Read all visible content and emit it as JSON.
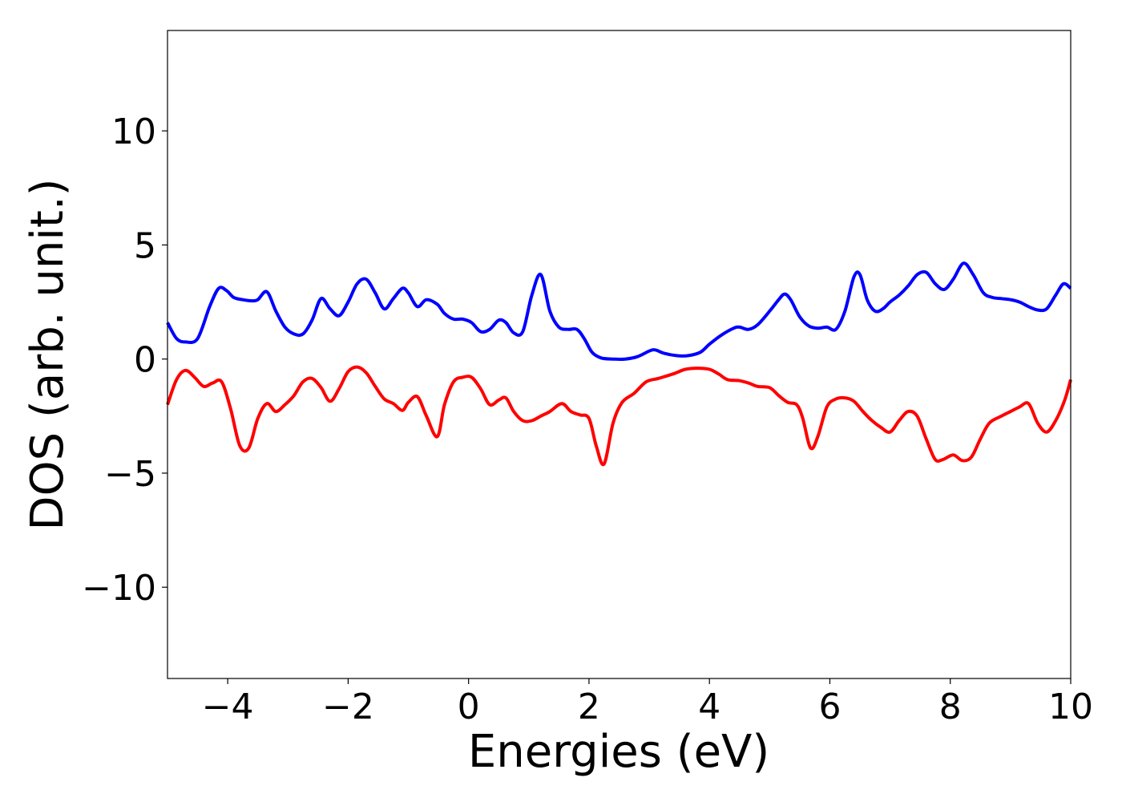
{
  "chart_data": {
    "type": "line",
    "title": "",
    "xlabel": "Energies (eV)",
    "ylabel": "DOS (arb. unit.)",
    "xlim": [
      -5,
      10
    ],
    "ylim": [
      -14,
      14.4
    ],
    "xticks": [
      -4,
      -2,
      0,
      2,
      4,
      6,
      8,
      10
    ],
    "xtick_labels": [
      "−4",
      "−2",
      "0",
      "2",
      "4",
      "6",
      "8",
      "10"
    ],
    "yticks": [
      -10,
      -5,
      0,
      5,
      10
    ],
    "ytick_labels": [
      "−10",
      "−5",
      "0",
      "5",
      "10"
    ],
    "grid": false,
    "legend": "none",
    "series": [
      {
        "color": "#0000ff",
        "x": [
          -5.0,
          -4.85,
          -4.7,
          -4.5,
          -4.3,
          -4.15,
          -4.02,
          -3.9,
          -3.75,
          -3.6,
          -3.5,
          -3.35,
          -3.2,
          -3.05,
          -2.9,
          -2.75,
          -2.6,
          -2.45,
          -2.3,
          -2.15,
          -2.0,
          -1.85,
          -1.7,
          -1.55,
          -1.4,
          -1.25,
          -1.1,
          -1.0,
          -0.85,
          -0.7,
          -0.52,
          -0.4,
          -0.25,
          -0.1,
          0.05,
          0.2,
          0.35,
          0.5,
          0.62,
          0.75,
          0.9,
          1.05,
          1.2,
          1.35,
          1.5,
          1.65,
          1.8,
          1.92,
          2.05,
          2.2,
          2.4,
          2.6,
          2.8,
          3.0,
          3.1,
          3.25,
          3.45,
          3.65,
          3.85,
          4.0,
          4.2,
          4.4,
          4.5,
          4.65,
          4.8,
          5.0,
          5.15,
          5.25,
          5.35,
          5.5,
          5.65,
          5.8,
          5.95,
          6.1,
          6.25,
          6.4,
          6.5,
          6.62,
          6.75,
          6.88,
          7.0,
          7.15,
          7.3,
          7.45,
          7.6,
          7.75,
          7.9,
          8.05,
          8.22,
          8.38,
          8.55,
          8.7,
          8.85,
          9.0,
          9.15,
          9.3,
          9.45,
          9.6,
          9.75,
          9.88,
          10.0
        ],
        "y": [
          1.6,
          0.9,
          0.75,
          0.9,
          2.3,
          3.1,
          3.0,
          2.7,
          2.6,
          2.55,
          2.6,
          2.95,
          2.1,
          1.4,
          1.1,
          1.1,
          1.7,
          2.65,
          2.2,
          1.9,
          2.5,
          3.3,
          3.5,
          2.9,
          2.2,
          2.65,
          3.1,
          2.9,
          2.3,
          2.6,
          2.4,
          2.0,
          1.75,
          1.75,
          1.6,
          1.2,
          1.3,
          1.7,
          1.6,
          1.15,
          1.2,
          2.8,
          3.7,
          2.1,
          1.4,
          1.3,
          1.3,
          0.9,
          0.3,
          0.05,
          0.0,
          0.0,
          0.1,
          0.35,
          0.4,
          0.25,
          0.15,
          0.15,
          0.3,
          0.65,
          1.05,
          1.35,
          1.4,
          1.3,
          1.5,
          2.1,
          2.6,
          2.85,
          2.6,
          1.85,
          1.45,
          1.35,
          1.4,
          1.3,
          2.1,
          3.6,
          3.7,
          2.6,
          2.1,
          2.2,
          2.5,
          2.8,
          3.2,
          3.7,
          3.8,
          3.3,
          3.05,
          3.5,
          4.2,
          3.7,
          2.9,
          2.7,
          2.65,
          2.6,
          2.5,
          2.3,
          2.15,
          2.2,
          2.8,
          3.3,
          3.1
        ]
      },
      {
        "color": "#ff0000",
        "x": [
          -5.0,
          -4.85,
          -4.7,
          -4.55,
          -4.4,
          -4.25,
          -4.1,
          -3.95,
          -3.8,
          -3.65,
          -3.5,
          -3.35,
          -3.2,
          -3.05,
          -2.9,
          -2.75,
          -2.6,
          -2.45,
          -2.3,
          -2.15,
          -2.0,
          -1.85,
          -1.7,
          -1.55,
          -1.4,
          -1.25,
          -1.1,
          -1.0,
          -0.85,
          -0.7,
          -0.52,
          -0.4,
          -0.25,
          -0.1,
          0.05,
          0.2,
          0.35,
          0.5,
          0.62,
          0.75,
          0.9,
          1.05,
          1.2,
          1.35,
          1.55,
          1.7,
          1.85,
          2.0,
          2.12,
          2.25,
          2.4,
          2.55,
          2.75,
          2.95,
          3.15,
          3.4,
          3.6,
          3.8,
          4.0,
          4.15,
          4.3,
          4.5,
          4.65,
          4.8,
          5.0,
          5.15,
          5.3,
          5.45,
          5.55,
          5.68,
          5.8,
          5.95,
          6.1,
          6.25,
          6.4,
          6.55,
          6.7,
          6.85,
          7.0,
          7.15,
          7.3,
          7.45,
          7.6,
          7.75,
          7.88,
          8.05,
          8.2,
          8.35,
          8.5,
          8.65,
          8.85,
          9.0,
          9.15,
          9.3,
          9.45,
          9.6,
          9.75,
          9.9,
          10.0
        ],
        "y": [
          -2.0,
          -0.9,
          -0.5,
          -0.8,
          -1.2,
          -1.05,
          -1.0,
          -2.2,
          -3.8,
          -3.9,
          -2.6,
          -1.95,
          -2.3,
          -2.0,
          -1.6,
          -1.0,
          -0.85,
          -1.25,
          -1.85,
          -1.3,
          -0.55,
          -0.35,
          -0.6,
          -1.2,
          -1.75,
          -1.95,
          -2.25,
          -1.9,
          -1.65,
          -2.5,
          -3.4,
          -2.0,
          -1.0,
          -0.8,
          -0.8,
          -1.3,
          -2.0,
          -1.8,
          -1.7,
          -2.3,
          -2.7,
          -2.7,
          -2.5,
          -2.3,
          -1.95,
          -2.3,
          -2.45,
          -2.6,
          -3.8,
          -4.6,
          -2.8,
          -1.9,
          -1.5,
          -1.0,
          -0.85,
          -0.65,
          -0.45,
          -0.4,
          -0.45,
          -0.65,
          -0.9,
          -0.95,
          -1.05,
          -1.2,
          -1.25,
          -1.6,
          -1.9,
          -2.0,
          -2.6,
          -3.9,
          -3.4,
          -2.1,
          -1.75,
          -1.7,
          -1.85,
          -2.3,
          -2.7,
          -3.0,
          -3.2,
          -2.7,
          -2.3,
          -2.5,
          -3.5,
          -4.4,
          -4.4,
          -4.2,
          -4.45,
          -4.3,
          -3.5,
          -2.8,
          -2.5,
          -2.3,
          -2.1,
          -1.95,
          -2.8,
          -3.2,
          -2.7,
          -1.8,
          -0.9
        ]
      }
    ]
  }
}
